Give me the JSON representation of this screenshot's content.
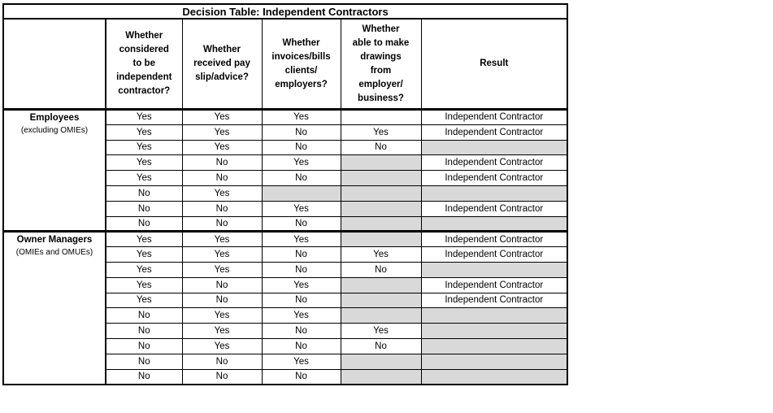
{
  "title": "Decision Table: Independent Contractors",
  "columns": [
    "",
    "Whether\nconsidered\nto be\nindependent\ncontractor?",
    "Whether\nreceived pay\nslip/advice?",
    "Whether\ninvoices/bills\nclients/\nemployers?",
    "Whether\nable to make\ndrawings\nfrom\nemployer/\nbusiness?",
    "Result"
  ],
  "colors": {
    "shaded_cell": "#d9d9d9",
    "border": "#000000",
    "background": "#ffffff",
    "text": "#000000"
  },
  "result_label": "Independent Contractor",
  "sections": [
    {
      "group": "Employees",
      "note": "(excluding OMIEs)",
      "rows": [
        {
          "values": [
            "Yes",
            "Yes",
            "Yes",
            "",
            "Independent Contractor"
          ],
          "shaded": [
            false,
            false,
            false,
            false,
            false
          ]
        },
        {
          "values": [
            "Yes",
            "Yes",
            "No",
            "Yes",
            "Independent Contractor"
          ],
          "shaded": [
            false,
            false,
            false,
            false,
            false
          ]
        },
        {
          "values": [
            "Yes",
            "Yes",
            "No",
            "No",
            ""
          ],
          "shaded": [
            false,
            false,
            false,
            false,
            true
          ]
        },
        {
          "values": [
            "Yes",
            "No",
            "Yes",
            "",
            "Independent Contractor"
          ],
          "shaded": [
            false,
            false,
            false,
            true,
            false
          ]
        },
        {
          "values": [
            "Yes",
            "No",
            "No",
            "",
            "Independent Contractor"
          ],
          "shaded": [
            false,
            false,
            false,
            true,
            false
          ]
        },
        {
          "values": [
            "No",
            "Yes",
            "",
            "",
            ""
          ],
          "shaded": [
            false,
            false,
            true,
            true,
            true
          ]
        },
        {
          "values": [
            "No",
            "No",
            "Yes",
            "",
            "Independent Contractor"
          ],
          "shaded": [
            false,
            false,
            false,
            true,
            false
          ]
        },
        {
          "values": [
            "No",
            "No",
            "No",
            "",
            ""
          ],
          "shaded": [
            false,
            false,
            false,
            true,
            true
          ]
        }
      ]
    },
    {
      "group": "Owner Managers",
      "note": "(OMIEs and OMUEs)",
      "rows": [
        {
          "values": [
            "Yes",
            "Yes",
            "Yes",
            "",
            "Independent Contractor"
          ],
          "shaded": [
            false,
            false,
            false,
            true,
            false
          ]
        },
        {
          "values": [
            "Yes",
            "Yes",
            "No",
            "Yes",
            "Independent Contractor"
          ],
          "shaded": [
            false,
            false,
            false,
            false,
            false
          ]
        },
        {
          "values": [
            "Yes",
            "Yes",
            "No",
            "No",
            ""
          ],
          "shaded": [
            false,
            false,
            false,
            false,
            true
          ]
        },
        {
          "values": [
            "Yes",
            "No",
            "Yes",
            "",
            "Independent Contractor"
          ],
          "shaded": [
            false,
            false,
            false,
            true,
            false
          ]
        },
        {
          "values": [
            "Yes",
            "No",
            "No",
            "",
            "Independent Contractor"
          ],
          "shaded": [
            false,
            false,
            false,
            true,
            false
          ]
        },
        {
          "values": [
            "No",
            "Yes",
            "Yes",
            "",
            ""
          ],
          "shaded": [
            false,
            false,
            false,
            true,
            true
          ]
        },
        {
          "values": [
            "No",
            "Yes",
            "No",
            "Yes",
            ""
          ],
          "shaded": [
            false,
            false,
            false,
            false,
            true
          ]
        },
        {
          "values": [
            "No",
            "Yes",
            "No",
            "No",
            ""
          ],
          "shaded": [
            false,
            false,
            false,
            false,
            true
          ]
        },
        {
          "values": [
            "No",
            "No",
            "Yes",
            "",
            ""
          ],
          "shaded": [
            false,
            false,
            false,
            true,
            true
          ]
        },
        {
          "values": [
            "No",
            "No",
            "No",
            "",
            ""
          ],
          "shaded": [
            false,
            false,
            false,
            true,
            true
          ]
        }
      ]
    }
  ]
}
